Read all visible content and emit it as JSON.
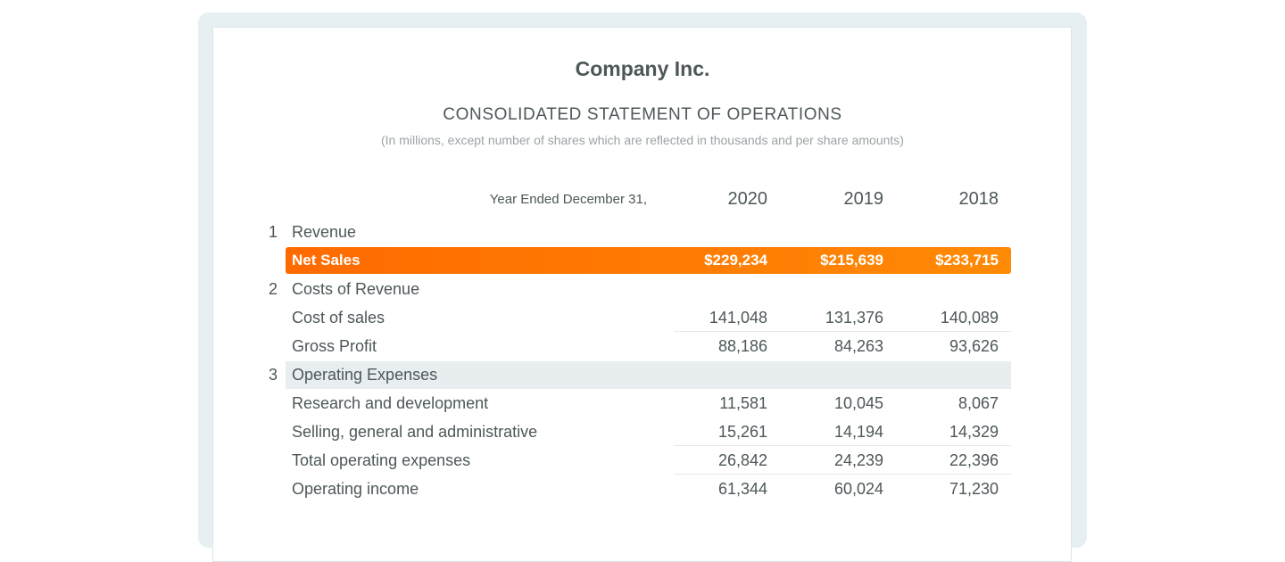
{
  "company": "Company Inc.",
  "statement_title": "CONSOLIDATED STATEMENT OF OPERATIONS",
  "note": "(In millions, except number of shares which are reflected in thousands and per share amounts)",
  "header": {
    "label": "Year Ended December 31,",
    "years": [
      "2020",
      "2019",
      "2018"
    ]
  },
  "colors": {
    "highlight_start": "#ff6a00",
    "highlight_end": "#ff8a05",
    "section_band": "#e8edef"
  },
  "rows": [
    {
      "num": "1",
      "label": "Revenue",
      "values": []
    },
    {
      "num": "",
      "label": "Net Sales",
      "values": [
        "$229,234",
        "$215,639",
        "$233,715"
      ]
    },
    {
      "num": "2",
      "label": "Costs of Revenue",
      "values": []
    },
    {
      "num": "",
      "label": "Cost of sales",
      "values": [
        "141,048",
        "131,376",
        "140,089"
      ]
    },
    {
      "num": "",
      "label": "Gross Profit",
      "values": [
        "88,186",
        "84,263",
        "93,626"
      ]
    },
    {
      "num": "3",
      "label": "Operating Expenses",
      "values": []
    },
    {
      "num": "",
      "label": "Research and development",
      "values": [
        "11,581",
        "10,045",
        "8,067"
      ]
    },
    {
      "num": "",
      "label": "Selling, general and administrative",
      "values": [
        "15,261",
        "14,194",
        "14,329"
      ]
    },
    {
      "num": "",
      "label": "Total operating expenses",
      "values": [
        "26,842",
        "24,239",
        "22,396"
      ]
    },
    {
      "num": "",
      "label": "Operating income",
      "values": [
        "61,344",
        "60,024",
        "71,230"
      ]
    }
  ]
}
